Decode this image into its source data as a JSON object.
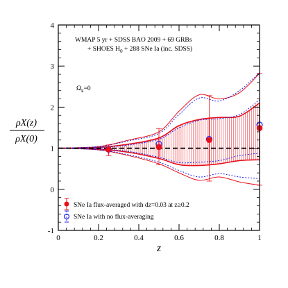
{
  "chart_data": {
    "type": "line",
    "title": "",
    "annotation_lines": [
      "WMAP 5 yr + SDSS BAO 2009 + 69 GRBs",
      "+ SHOES H",
      "0",
      " + 288 SNe Ia (inc. SDSS)"
    ],
    "omega_label": "Ω",
    "omega_sub": "k",
    "omega_value": "=0",
    "xlabel": "z",
    "ylabel_num": "ρX(z)",
    "ylabel_den": "ρX(0)",
    "xlim": [
      0,
      1
    ],
    "ylim": [
      -1,
      4
    ],
    "x_ticks": [
      "0",
      "0.2",
      "0.4",
      "0.6",
      "0.8",
      "1"
    ],
    "y_ticks": [
      "-1",
      "0",
      "1",
      "2",
      "3",
      "4"
    ],
    "reference_line": {
      "y": 1,
      "style": "dashed",
      "color": "#000000"
    },
    "grid": false,
    "legend": {
      "position": "bottom-left",
      "entries": [
        {
          "label": "SNe Ia flux-averaged with dz=0.03 at z≥0.2",
          "color": "#e8101a",
          "marker": "filled-circle"
        },
        {
          "label": "SNe Ia with no flux-averaging",
          "color": "#1f1fe6",
          "marker": "open-circle"
        }
      ]
    },
    "series": [
      {
        "name": "SNe Ia flux-averaged with dz=0.03 at z≥0.2",
        "color": "#e8101a",
        "marker": "filled-circle",
        "x": [
          0.25,
          0.5,
          0.75,
          1.0
        ],
        "y": [
          0.97,
          1.03,
          1.2,
          1.49
        ],
        "y_lower_68": [
          0.86,
          0.78,
          0.58,
          0.7
        ],
        "y_upper_68": [
          1.04,
          1.28,
          1.72,
          2.1
        ],
        "y_lower_95": [
          0.82,
          0.6,
          0.2,
          0.1
        ],
        "y_upper_95": [
          1.08,
          1.48,
          2.28,
          2.82
        ]
      },
      {
        "name": "SNe Ia with no flux-averaging",
        "color": "#1f1fe6",
        "marker": "open-circle",
        "x": [
          0.25,
          0.5,
          0.75,
          1.0
        ],
        "y": [
          0.97,
          1.1,
          1.22,
          1.57
        ]
      }
    ],
    "bands": [
      {
        "level": "68%",
        "color": "#e8101a",
        "style": "solid",
        "hatch": "vertical",
        "x": [
          0,
          0.2,
          0.35,
          0.5,
          0.6,
          0.7,
          0.8,
          0.9,
          1.0
        ],
        "lower": [
          1,
          0.98,
          0.9,
          0.75,
          0.6,
          0.58,
          0.62,
          0.7,
          0.72
        ],
        "upper": [
          1,
          1.02,
          1.1,
          1.25,
          1.55,
          1.7,
          1.75,
          1.78,
          2.1
        ]
      },
      {
        "level": "95%",
        "color": "#e8101a",
        "style": "solid",
        "x": [
          0,
          0.2,
          0.35,
          0.5,
          0.6,
          0.7,
          0.8,
          0.9,
          1.0
        ],
        "lower": [
          1,
          0.96,
          0.82,
          0.62,
          0.4,
          0.22,
          0.3,
          0.18,
          0.1
        ],
        "upper": [
          1,
          1.04,
          1.2,
          1.4,
          1.9,
          2.3,
          2.2,
          2.35,
          2.82
        ]
      },
      {
        "level": "68% no flux-averaging",
        "color": "#1f1fe6",
        "style": "dotted",
        "x": [
          0,
          0.2,
          0.35,
          0.5,
          0.6,
          0.7,
          0.8,
          0.9,
          1.0
        ],
        "lower": [
          1,
          0.98,
          0.92,
          0.78,
          0.65,
          0.66,
          0.7,
          0.82,
          0.88
        ],
        "upper": [
          1,
          1.02,
          1.08,
          1.22,
          1.5,
          1.68,
          1.72,
          1.82,
          2.18
        ]
      },
      {
        "level": "95% no flux-averaging",
        "color": "#1f1fe6",
        "style": "dotted",
        "x": [
          0,
          0.2,
          0.35,
          0.5,
          0.6,
          0.7,
          0.8,
          0.9,
          1.0
        ],
        "lower": [
          1,
          0.96,
          0.84,
          0.66,
          0.46,
          0.3,
          0.38,
          0.3,
          0.26
        ],
        "upper": [
          1,
          1.04,
          1.18,
          1.36,
          1.82,
          2.22,
          2.15,
          2.4,
          2.84
        ]
      }
    ]
  }
}
